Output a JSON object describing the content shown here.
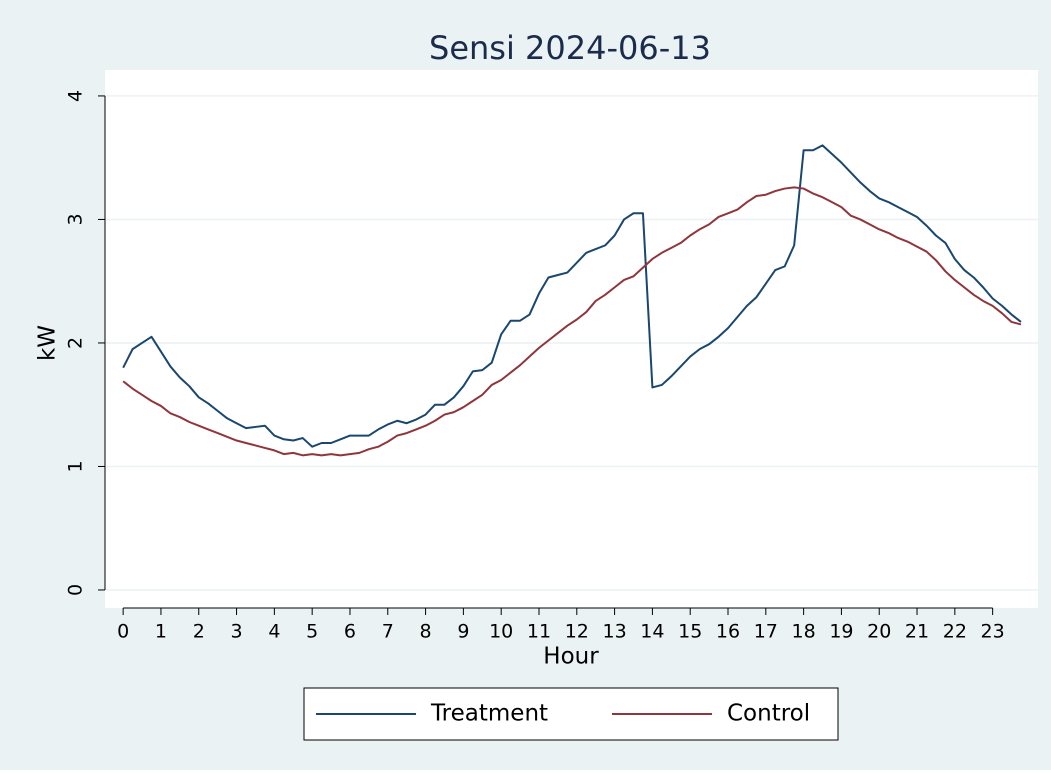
{
  "chart_data": {
    "type": "line",
    "title": "Sensi 2024-06-13",
    "x_label": "Hour",
    "y_label": "kW",
    "x": [
      0,
      0.25,
      0.5,
      0.75,
      1,
      1.25,
      1.5,
      1.75,
      2,
      2.25,
      2.5,
      2.75,
      3,
      3.25,
      3.5,
      3.75,
      4,
      4.25,
      4.5,
      4.75,
      5,
      5.25,
      5.5,
      5.75,
      6,
      6.25,
      6.5,
      6.75,
      7,
      7.25,
      7.5,
      7.75,
      8,
      8.25,
      8.5,
      8.75,
      9,
      9.25,
      9.5,
      9.75,
      10,
      10.25,
      10.5,
      10.75,
      11,
      11.25,
      11.5,
      11.75,
      12,
      12.25,
      12.5,
      12.75,
      13,
      13.25,
      13.5,
      13.75,
      14,
      14.25,
      14.5,
      14.75,
      15,
      15.25,
      15.5,
      15.75,
      16,
      16.25,
      16.5,
      16.75,
      17,
      17.25,
      17.5,
      17.75,
      18,
      18.25,
      18.5,
      18.75,
      19,
      19.25,
      19.5,
      19.75,
      20,
      20.25,
      20.5,
      20.75,
      21,
      21.25,
      21.5,
      21.75,
      22,
      22.25,
      22.5,
      22.75,
      23,
      23.25,
      23.5,
      23.75
    ],
    "series": [
      {
        "name": "Treatment",
        "color": "#1a476f",
        "values": [
          1.8,
          1.95,
          2.0,
          2.05,
          1.93,
          1.81,
          1.72,
          1.65,
          1.56,
          1.51,
          1.45,
          1.39,
          1.35,
          1.31,
          1.32,
          1.33,
          1.25,
          1.22,
          1.21,
          1.23,
          1.16,
          1.19,
          1.19,
          1.22,
          1.25,
          1.25,
          1.25,
          1.3,
          1.34,
          1.37,
          1.35,
          1.38,
          1.42,
          1.5,
          1.5,
          1.56,
          1.65,
          1.77,
          1.78,
          1.84,
          2.07,
          2.18,
          2.18,
          2.23,
          2.4,
          2.53,
          2.55,
          2.57,
          2.65,
          2.73,
          2.76,
          2.79,
          2.87,
          3.0,
          3.05,
          3.05,
          1.64,
          1.66,
          1.73,
          1.81,
          1.89,
          1.95,
          1.99,
          2.05,
          2.12,
          2.21,
          2.3,
          2.37,
          2.48,
          2.59,
          2.62,
          2.79,
          3.56,
          3.56,
          3.6,
          3.53,
          3.46,
          3.38,
          3.3,
          3.23,
          3.17,
          3.14,
          3.1,
          3.06,
          3.02,
          2.95,
          2.87,
          2.81,
          2.68,
          2.59,
          2.53,
          2.45,
          2.36,
          2.3,
          2.23,
          2.17
        ]
      },
      {
        "name": "Control",
        "color": "#90353b",
        "values": [
          1.69,
          1.63,
          1.58,
          1.53,
          1.49,
          1.43,
          1.4,
          1.36,
          1.33,
          1.3,
          1.27,
          1.24,
          1.21,
          1.19,
          1.17,
          1.15,
          1.13,
          1.1,
          1.11,
          1.09,
          1.1,
          1.09,
          1.1,
          1.09,
          1.1,
          1.11,
          1.14,
          1.16,
          1.2,
          1.25,
          1.27,
          1.3,
          1.33,
          1.37,
          1.42,
          1.44,
          1.48,
          1.53,
          1.58,
          1.66,
          1.7,
          1.76,
          1.82,
          1.89,
          1.96,
          2.02,
          2.08,
          2.14,
          2.19,
          2.25,
          2.34,
          2.39,
          2.45,
          2.51,
          2.54,
          2.61,
          2.68,
          2.73,
          2.77,
          2.81,
          2.87,
          2.92,
          2.96,
          3.02,
          3.05,
          3.08,
          3.14,
          3.19,
          3.2,
          3.23,
          3.25,
          3.26,
          3.25,
          3.21,
          3.18,
          3.14,
          3.1,
          3.03,
          3.0,
          2.96,
          2.92,
          2.89,
          2.85,
          2.82,
          2.78,
          2.74,
          2.67,
          2.58,
          2.51,
          2.45,
          2.39,
          2.34,
          2.3,
          2.24,
          2.17,
          2.15
        ]
      }
    ],
    "xlim": [
      -0.48,
      24.2
    ],
    "ylim": [
      -0.146,
      4.21
    ],
    "xticks": [
      0,
      1,
      2,
      3,
      4,
      5,
      6,
      7,
      8,
      9,
      10,
      11,
      12,
      13,
      14,
      15,
      16,
      17,
      18,
      19,
      20,
      21,
      22,
      23
    ],
    "yticks": [
      0,
      1,
      2,
      3,
      4
    ],
    "grid": true,
    "legend": "bottom"
  }
}
